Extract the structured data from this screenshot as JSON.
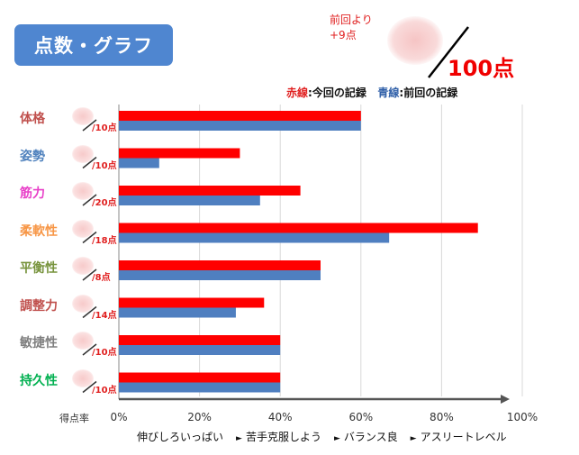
{
  "header": {
    "title": "点数・グラフ"
  },
  "previous_note": {
    "line1": "前回より",
    "line2": "+9点"
  },
  "total_score": "100点",
  "legend": {
    "red_label": "赤線",
    "red_desc": ":今回の記録",
    "blue_label": "青線",
    "blue_desc": ":前回の記録"
  },
  "colors": {
    "current": "#ff0000",
    "previous": "#4f7fc0",
    "title_bg": "#4f86d0"
  },
  "chart_data": {
    "type": "bar",
    "orientation": "horizontal",
    "categories": [
      "体格",
      "姿勢",
      "筋力",
      "柔軟性",
      "平衡性",
      "調整力",
      "敏捷性",
      "持久性"
    ],
    "category_colors": [
      "#c0504d",
      "#4f81bd",
      "#e83fc8",
      "#f79646",
      "#77933c",
      "#c0504d",
      "#7f7f7f",
      "#00b050"
    ],
    "scores": [
      "/10点",
      "/10点",
      "/20点",
      "/18点",
      "/8点",
      "/14点",
      "/10点",
      "/10点"
    ],
    "series": [
      {
        "name": "赤線",
        "values": [
          60,
          30,
          45,
          89,
          50,
          36,
          40,
          40
        ]
      },
      {
        "name": "青線",
        "values": [
          60,
          10,
          35,
          67,
          50,
          29,
          40,
          40
        ]
      }
    ],
    "xlim": [
      0,
      100
    ],
    "xticks": [
      "0%",
      "20%",
      "40%",
      "60%",
      "80%",
      "100%"
    ],
    "xlabel": "得点率",
    "levels": [
      "伸びしろいっぱい",
      "苦手克服しよう",
      "バランス良",
      "アスリートレベル"
    ],
    "level_arrow": "►",
    "grid": true
  }
}
